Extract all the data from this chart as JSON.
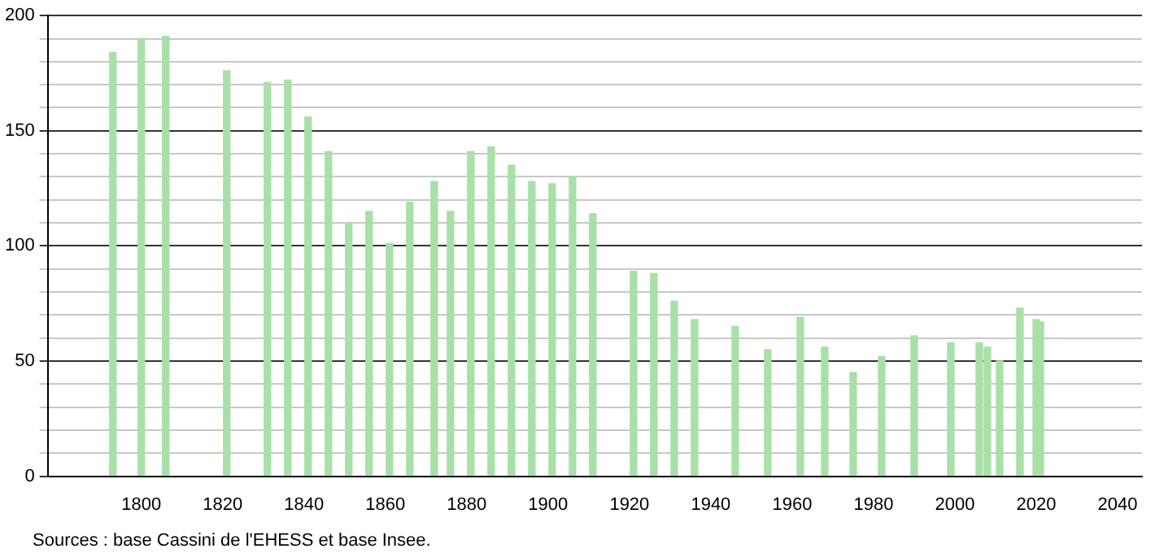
{
  "chart_data": {
    "type": "bar",
    "x": [
      1793,
      1800,
      1806,
      1821,
      1831,
      1836,
      1841,
      1846,
      1851,
      1856,
      1861,
      1866,
      1872,
      1876,
      1881,
      1886,
      1891,
      1896,
      1901,
      1906,
      1911,
      1921,
      1926,
      1931,
      1936,
      1946,
      1954,
      1962,
      1968,
      1975,
      1982,
      1990,
      1999,
      2006,
      2008,
      2011,
      2016,
      2020,
      2021
    ],
    "values": [
      184,
      190,
      191,
      176,
      171,
      172,
      156,
      141,
      110,
      115,
      101,
      119,
      128,
      115,
      141,
      143,
      135,
      128,
      127,
      130,
      114,
      89,
      88,
      76,
      68,
      65,
      55,
      69,
      56,
      45,
      52,
      61,
      58,
      58,
      56,
      50,
      73,
      68,
      67
    ],
    "color": "#a8e0a8",
    "xlim": [
      1777,
      2046
    ],
    "xticks": [
      1800,
      1820,
      1840,
      1860,
      1880,
      1900,
      1920,
      1940,
      1960,
      1980,
      2000,
      2020,
      2040
    ],
    "ylim": [
      0,
      200
    ],
    "yticks": [
      0,
      {
        "value": 10,
        "label": null
      },
      {
        "value": 20,
        "label": null
      },
      {
        "value": 30,
        "label": null
      },
      {
        "value": 40,
        "label": null
      },
      50,
      {
        "value": 60,
        "label": null
      },
      {
        "value": 70,
        "label": null
      },
      {
        "value": 80,
        "label": null
      },
      {
        "value": 90,
        "label": null
      },
      100,
      {
        "value": 110,
        "label": null
      },
      {
        "value": 120,
        "label": null
      },
      {
        "value": 130,
        "label": null
      },
      {
        "value": 140,
        "label": null
      },
      150,
      {
        "value": 160,
        "label": null
      },
      {
        "value": 170,
        "label": null
      },
      {
        "value": 180,
        "label": null
      },
      {
        "value": 190,
        "label": null
      },
      200
    ],
    "grid": "y",
    "legend": false,
    "annotations": [
      "Sources : base Cassini de l'EHESS et base Insee."
    ]
  }
}
